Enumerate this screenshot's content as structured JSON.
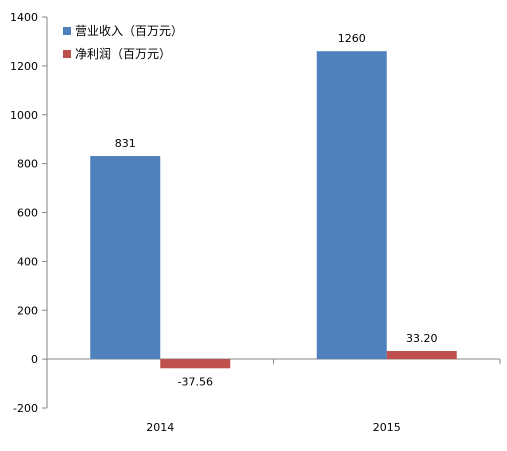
{
  "chart_data": {
    "type": "bar",
    "categories": [
      "2014",
      "2015"
    ],
    "series": [
      {
        "name": "营业收入（百万元）",
        "values": [
          831,
          1260
        ],
        "labels": [
          "831",
          "1260"
        ],
        "color": "#4f81bd"
      },
      {
        "name": "净利润（百万元）",
        "values": [
          -37.56,
          33.2
        ],
        "labels": [
          "-37.56",
          "33.20"
        ],
        "color": "#c0504d"
      }
    ],
    "ylim": [
      -200,
      1400
    ],
    "yticks": [
      "-200",
      "0",
      "200",
      "400",
      "600",
      "800",
      "1000",
      "1200",
      "1400"
    ],
    "legend_position": "top-left",
    "grid": false
  }
}
